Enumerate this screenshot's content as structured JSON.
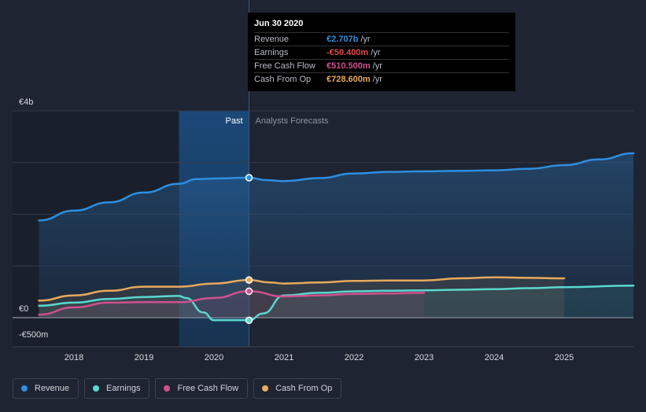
{
  "tooltip": {
    "date": "Jun 30 2020",
    "rows": [
      {
        "label": "Revenue",
        "value": "€2.707b",
        "unit": "/yr",
        "color": "#2e8fe0"
      },
      {
        "label": "Earnings",
        "value": "-€50.400m",
        "unit": "/yr",
        "color": "#e24b4b"
      },
      {
        "label": "Free Cash Flow",
        "value": "€510.500m",
        "unit": "/yr",
        "color": "#d0508f"
      },
      {
        "label": "Cash From Op",
        "value": "€728.600m",
        "unit": "/yr",
        "color": "#e8a95c"
      }
    ]
  },
  "legend": [
    {
      "label": "Revenue",
      "color": "#2e8fe0"
    },
    {
      "label": "Earnings",
      "color": "#5ad8cf"
    },
    {
      "label": "Free Cash Flow",
      "color": "#d0508f"
    },
    {
      "label": "Cash From Op",
      "color": "#e8a95c"
    }
  ],
  "chart_data": {
    "type": "line",
    "title": "",
    "past_label": "Past",
    "forecast_label": "Analysts Forecasts",
    "divider_x": 2020.5,
    "highlight_start_x": 2019.5,
    "y_unit": "€m",
    "ylim": [
      -500,
      4000
    ],
    "y_labels": [
      {
        "value": 4000,
        "label": "€4b"
      },
      {
        "value": 0,
        "label": "€0"
      },
      {
        "value": -500,
        "label": "-€500m"
      }
    ],
    "x_ticks": [
      2018,
      2019,
      2020,
      2021,
      2022,
      2023,
      2024,
      2025
    ],
    "xlim": [
      2016.85,
      2025.99
    ],
    "series": [
      {
        "name": "Revenue",
        "color": "#2e8fe0",
        "points": [
          [
            2017.5,
            1880
          ],
          [
            2018.0,
            2070
          ],
          [
            2018.5,
            2230
          ],
          [
            2019.0,
            2420
          ],
          [
            2019.5,
            2590
          ],
          [
            2019.75,
            2680
          ],
          [
            2020.0,
            2690
          ],
          [
            2020.5,
            2707
          ],
          [
            2020.75,
            2660
          ],
          [
            2021.0,
            2640
          ],
          [
            2021.5,
            2700
          ],
          [
            2022.0,
            2790
          ],
          [
            2022.5,
            2820
          ],
          [
            2023.0,
            2830
          ],
          [
            2023.5,
            2840
          ],
          [
            2024.0,
            2850
          ],
          [
            2024.5,
            2880
          ],
          [
            2025.0,
            2950
          ],
          [
            2025.5,
            3060
          ],
          [
            2025.99,
            3180
          ]
        ]
      },
      {
        "name": "Earnings",
        "color": "#5ad8cf",
        "points": [
          [
            2017.5,
            230
          ],
          [
            2018.0,
            290
          ],
          [
            2018.5,
            360
          ],
          [
            2019.0,
            400
          ],
          [
            2019.5,
            420
          ],
          [
            2019.6,
            380
          ],
          [
            2019.85,
            100
          ],
          [
            2020.0,
            -50
          ],
          [
            2020.5,
            -50.4
          ],
          [
            2020.7,
            80
          ],
          [
            2021.0,
            430
          ],
          [
            2021.5,
            480
          ],
          [
            2022.0,
            510
          ],
          [
            2022.5,
            520
          ],
          [
            2023.0,
            530
          ],
          [
            2023.5,
            540
          ],
          [
            2024.0,
            550
          ],
          [
            2024.5,
            570
          ],
          [
            2025.0,
            590
          ],
          [
            2025.99,
            620
          ]
        ]
      },
      {
        "name": "Free Cash Flow",
        "color": "#d0508f",
        "points": [
          [
            2017.5,
            60
          ],
          [
            2018.0,
            200
          ],
          [
            2018.5,
            290
          ],
          [
            2019.0,
            300
          ],
          [
            2019.5,
            300
          ],
          [
            2020.0,
            380
          ],
          [
            2020.5,
            510.5
          ],
          [
            2021.0,
            410
          ],
          [
            2021.5,
            430
          ],
          [
            2022.0,
            460
          ],
          [
            2022.5,
            470
          ],
          [
            2023.0,
            480
          ]
        ]
      },
      {
        "name": "Cash From Op",
        "color": "#e8a95c",
        "points": [
          [
            2017.5,
            330
          ],
          [
            2018.0,
            430
          ],
          [
            2018.5,
            520
          ],
          [
            2019.0,
            600
          ],
          [
            2019.5,
            600
          ],
          [
            2020.0,
            660
          ],
          [
            2020.5,
            728.6
          ],
          [
            2020.8,
            680
          ],
          [
            2021.0,
            660
          ],
          [
            2021.5,
            680
          ],
          [
            2022.0,
            710
          ],
          [
            2022.5,
            720
          ],
          [
            2023.0,
            720
          ],
          [
            2023.5,
            760
          ],
          [
            2024.0,
            780
          ],
          [
            2024.5,
            770
          ],
          [
            2025.0,
            760
          ]
        ]
      }
    ]
  }
}
